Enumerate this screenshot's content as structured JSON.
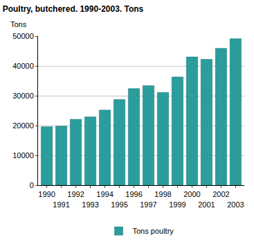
{
  "chart_data": {
    "type": "bar",
    "title": "Poultry, butchered. 1990-2003. Tons",
    "y_label": "Tons",
    "categories": [
      "1990",
      "1991",
      "1992",
      "1993",
      "1994",
      "1995",
      "1996",
      "1997",
      "1998",
      "1999",
      "2000",
      "2001",
      "2002",
      "2003"
    ],
    "series": [
      {
        "name": "Tons poultry",
        "color": "#2a9d9c",
        "values": [
          19600,
          19800,
          22100,
          22900,
          25200,
          28700,
          32400,
          33400,
          31100,
          36300,
          43000,
          42200,
          45900,
          49100
        ]
      }
    ],
    "ylim": [
      0,
      50000
    ],
    "yticks": [
      0,
      10000,
      20000,
      30000,
      40000,
      50000
    ],
    "grid": true,
    "legend": "bottom"
  }
}
